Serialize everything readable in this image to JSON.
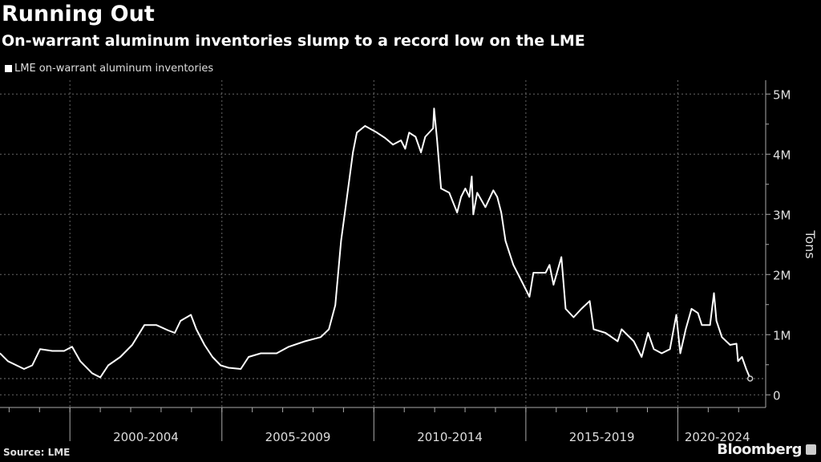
{
  "chart_data": {
    "type": "line",
    "title": "Running Out",
    "subtitle": "On-warrant aluminum inventories slump to a record low on the LME",
    "legend": [
      "LME on-warrant aluminum inventories"
    ],
    "legend_placement": "top-left",
    "ylabel": "Tons",
    "y_ticks": [
      {
        "v": 0,
        "label": "0"
      },
      {
        "v": 1,
        "label": "1M"
      },
      {
        "v": 2,
        "label": "2M"
      },
      {
        "v": 3,
        "label": "3M"
      },
      {
        "v": 4,
        "label": "4M"
      },
      {
        "v": 5,
        "label": "5M"
      }
    ],
    "ylim": [
      -0.21,
      5.23
    ],
    "xlim": [
      1997.7,
      2022.6
    ],
    "x_groups": [
      {
        "start": 2000,
        "end": 2005,
        "label": "2000-2004"
      },
      {
        "start": 2005,
        "end": 2010,
        "label": "2005-2009"
      },
      {
        "start": 2010,
        "end": 2015,
        "label": "2010-2014"
      },
      {
        "start": 2015,
        "end": 2020,
        "label": "2015-2019"
      },
      {
        "start": 2020,
        "end": 2022.6,
        "label": "2020-2024"
      }
    ],
    "grid": true,
    "units": "million tons",
    "series": [
      {
        "name": "LME on-warrant aluminum inventories",
        "color": "#ffffff",
        "x": [
          1997.7,
          1997.96,
          1998.49,
          1998.76,
          1999.02,
          1999.42,
          1999.81,
          2000.07,
          2000.34,
          2000.73,
          2001.0,
          2001.26,
          2001.66,
          2002.05,
          2002.45,
          2002.85,
          2003.24,
          2003.45,
          2003.64,
          2003.98,
          2004.16,
          2004.43,
          2004.69,
          2004.96,
          2005.22,
          2005.62,
          2005.88,
          2006.28,
          2006.8,
          2007.2,
          2007.73,
          2008.25,
          2008.52,
          2008.73,
          2008.92,
          2009.1,
          2009.31,
          2009.44,
          2009.71,
          2010.1,
          2010.37,
          2010.63,
          2010.89,
          2011.03,
          2011.16,
          2011.37,
          2011.55,
          2011.69,
          2011.95,
          2011.98,
          2012.08,
          2012.21,
          2012.48,
          2012.74,
          2012.87,
          2013.01,
          2013.14,
          2013.22,
          2013.27,
          2013.4,
          2013.67,
          2013.93,
          2014.06,
          2014.19,
          2014.33,
          2014.59,
          2014.86,
          2015.12,
          2015.25,
          2015.65,
          2015.78,
          2015.91,
          2016.17,
          2016.31,
          2016.57,
          2016.83,
          2017.1,
          2017.23,
          2017.62,
          2018.02,
          2018.15,
          2018.55,
          2018.81,
          2019.02,
          2019.21,
          2019.47,
          2019.74,
          2019.95,
          2020.08,
          2020.26,
          2020.45,
          2020.66,
          2020.79,
          2021.06,
          2021.19,
          2021.27,
          2021.45,
          2021.72,
          2021.93,
          2021.98,
          2022.11,
          2022.25,
          2022.38
        ],
        "y": [
          0.69,
          0.56,
          0.43,
          0.49,
          0.76,
          0.73,
          0.73,
          0.8,
          0.56,
          0.36,
          0.29,
          0.49,
          0.63,
          0.83,
          1.16,
          1.16,
          1.07,
          1.03,
          1.23,
          1.33,
          1.09,
          0.83,
          0.63,
          0.49,
          0.45,
          0.43,
          0.63,
          0.69,
          0.69,
          0.8,
          0.89,
          0.96,
          1.09,
          1.49,
          2.56,
          3.23,
          4.03,
          4.36,
          4.47,
          4.36,
          4.27,
          4.16,
          4.23,
          4.09,
          4.36,
          4.29,
          4.03,
          4.29,
          4.43,
          4.76,
          4.23,
          3.43,
          3.36,
          3.03,
          3.29,
          3.43,
          3.29,
          3.63,
          3.0,
          3.36,
          3.12,
          3.4,
          3.29,
          3.03,
          2.56,
          2.16,
          1.89,
          1.63,
          2.03,
          2.03,
          2.16,
          1.83,
          2.29,
          1.43,
          1.29,
          1.43,
          1.56,
          1.09,
          1.03,
          0.89,
          1.09,
          0.89,
          0.63,
          1.03,
          0.76,
          0.69,
          0.76,
          1.33,
          0.69,
          1.09,
          1.43,
          1.36,
          1.16,
          1.16,
          1.69,
          1.23,
          0.96,
          0.83,
          0.85,
          0.56,
          0.63,
          0.43,
          0.27
        ]
      }
    ]
  },
  "footer": {
    "source": "Source: LME",
    "brand": "Bloomberg"
  }
}
